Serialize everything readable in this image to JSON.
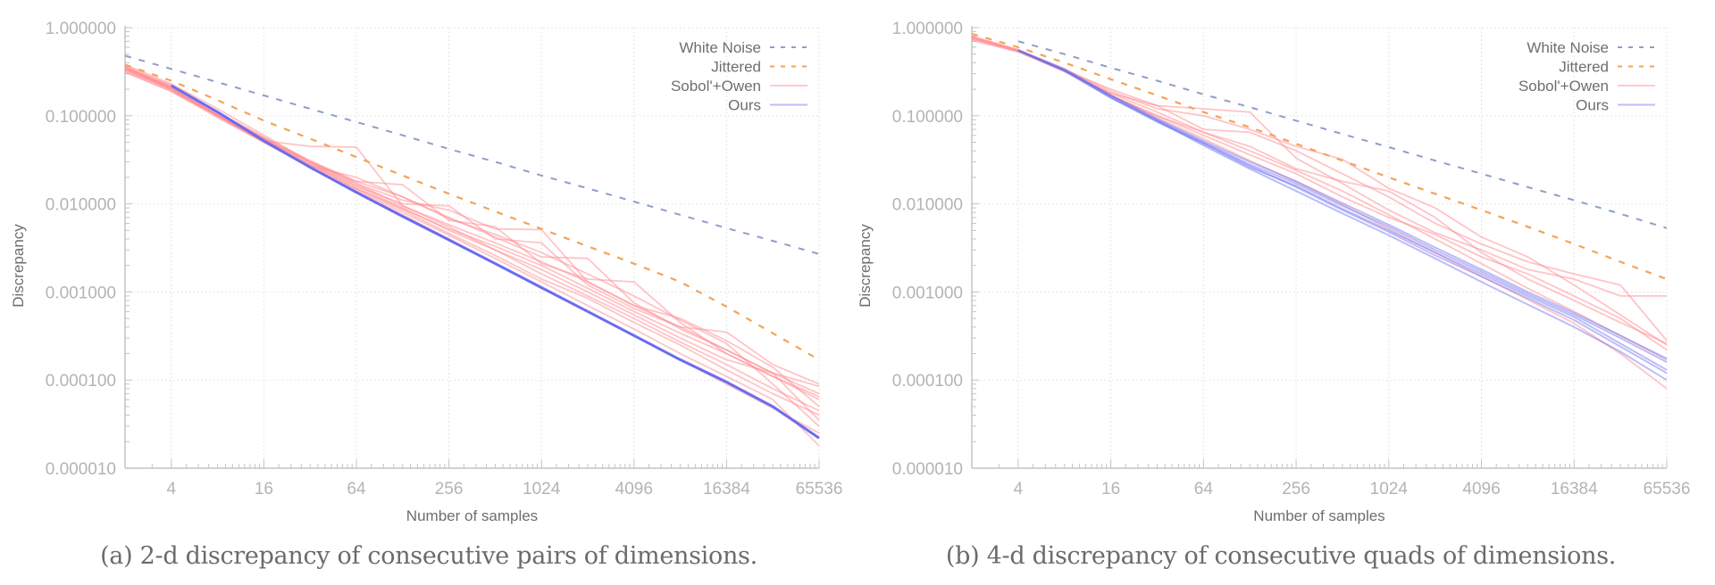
{
  "colors": {
    "white_noise": "#8c9fc8",
    "jittered": "#f3a35a",
    "sobol_owen": "#ff8a8f",
    "ours": "#6b6cf0",
    "axis": "#c4c4c4",
    "grid": "#dddddd"
  },
  "chart_data": [
    {
      "type": "line",
      "id": "a",
      "caption": "(a) 2-d discrepancy of consecutive pairs of dimensions.",
      "xlabel": "Number of samples",
      "ylabel": "Discrepancy",
      "xscale": "log2",
      "yscale": "log10",
      "xlim": [
        2,
        65536
      ],
      "ylim": [
        1e-05,
        1
      ],
      "xticks": [
        "4",
        "16",
        "64",
        "256",
        "1024",
        "4096",
        "16384",
        "65536"
      ],
      "xtick_values": [
        4,
        16,
        64,
        256,
        1024,
        4096,
        16384,
        65536
      ],
      "yticks": [
        "1.000000",
        "0.100000",
        "0.010000",
        "0.001000",
        "0.000100",
        "0.000010"
      ],
      "ytick_values": [
        1,
        0.1,
        0.01,
        0.001,
        0.0001,
        1e-05
      ],
      "grid": true,
      "legend_position": "top-right",
      "legend": [
        "White Noise",
        "Jittered",
        "Sobol'+Owen",
        "Ours"
      ],
      "x": [
        2,
        4,
        8,
        16,
        32,
        64,
        128,
        256,
        512,
        1024,
        2048,
        4096,
        8192,
        16384,
        32768,
        65536
      ],
      "series": [
        {
          "name": "White Noise",
          "style": "dashed",
          "values": [
            0.48,
            0.34,
            0.24,
            0.17,
            0.12,
            0.085,
            0.06,
            0.042,
            0.03,
            0.021,
            0.015,
            0.0106,
            0.0075,
            0.0053,
            0.0038,
            0.0027
          ]
        },
        {
          "name": "Jittered",
          "style": "dashed",
          "values": [
            0.38,
            0.25,
            0.15,
            0.088,
            0.055,
            0.034,
            0.021,
            0.013,
            0.0082,
            0.0052,
            0.0033,
            0.0021,
            0.0013,
            0.00068,
            0.00034,
            0.00017
          ]
        },
        {
          "name": "Ours",
          "style": "solid-thick",
          "values": [
            null,
            0.22,
            0.11,
            0.052,
            0.026,
            0.0135,
            0.0072,
            0.0039,
            0.0021,
            0.00112,
            0.0006,
            0.00032,
            0.00017,
            9.5e-05,
            5e-05,
            2.2e-05
          ]
        }
      ],
      "sobol_owen_runs": [
        [
          0.36,
          0.21,
          0.1,
          0.05,
          0.026,
          0.014,
          0.0075,
          0.004,
          0.0021,
          0.0011,
          0.0006,
          0.00032,
          0.00017,
          9e-05,
          4.8e-05,
          2.5e-05
        ],
        [
          0.33,
          0.2,
          0.1,
          0.052,
          0.045,
          0.044,
          0.0095,
          0.0055,
          0.003,
          0.0016,
          0.0009,
          0.0005,
          0.00027,
          0.00015,
          8e-05,
          4.5e-05
        ],
        [
          0.38,
          0.23,
          0.12,
          0.06,
          0.03,
          0.018,
          0.0165,
          0.0065,
          0.0055,
          0.0021,
          0.0014,
          0.0013,
          0.00045,
          0.0002,
          0.00011,
          6e-05
        ],
        [
          0.34,
          0.2,
          0.1,
          0.055,
          0.028,
          0.016,
          0.01,
          0.0095,
          0.004,
          0.0036,
          0.0012,
          0.00065,
          0.0004,
          0.00035,
          0.00015,
          9e-05
        ],
        [
          0.31,
          0.19,
          0.095,
          0.05,
          0.027,
          0.02,
          0.012,
          0.007,
          0.0042,
          0.0025,
          0.0024,
          0.00075,
          0.00038,
          0.00022,
          0.00012,
          7e-05
        ],
        [
          0.35,
          0.21,
          0.105,
          0.055,
          0.03,
          0.017,
          0.011,
          0.0085,
          0.0052,
          0.0051,
          0.0013,
          0.0007,
          0.0005,
          0.00028,
          0.00014,
          5e-05
        ],
        [
          0.37,
          0.22,
          0.11,
          0.057,
          0.031,
          0.018,
          0.012,
          0.0068,
          0.0045,
          0.0028,
          0.0016,
          0.0009,
          0.00048,
          0.00026,
          9e-05,
          3e-05
        ],
        [
          0.32,
          0.19,
          0.1,
          0.053,
          0.028,
          0.015,
          0.0085,
          0.0046,
          0.0026,
          0.0014,
          0.00085,
          0.00045,
          0.00025,
          0.00013,
          7e-05,
          4e-05
        ],
        [
          0.34,
          0.21,
          0.105,
          0.054,
          0.029,
          0.016,
          0.009,
          0.005,
          0.003,
          0.0018,
          0.001,
          0.00055,
          0.0003,
          0.00017,
          0.00012,
          8.5e-05
        ],
        [
          0.36,
          0.2,
          0.1,
          0.05,
          0.026,
          0.0145,
          0.008,
          0.0044,
          0.0024,
          0.0013,
          0.0007,
          0.00038,
          0.0002,
          0.00011,
          6e-05,
          1.8e-05
        ],
        [
          0.33,
          0.2,
          0.1,
          0.051,
          0.027,
          0.015,
          0.0088,
          0.0052,
          0.0033,
          0.002,
          0.0011,
          0.0006,
          0.00034,
          0.0002,
          0.00011,
          6.5e-05
        ],
        [
          0.35,
          0.22,
          0.11,
          0.056,
          0.03,
          0.017,
          0.0095,
          0.0058,
          0.0036,
          0.0022,
          0.0013,
          0.0007,
          0.0004,
          0.00022,
          0.00012,
          3.5e-05
        ]
      ]
    },
    {
      "type": "line",
      "id": "b",
      "caption": "(b) 4-d discrepancy of consecutive quads of dimensions.",
      "xlabel": "Number of samples",
      "ylabel": "Discrepancy",
      "xscale": "log2",
      "yscale": "log10",
      "xlim": [
        2,
        65536
      ],
      "ylim": [
        1e-05,
        1
      ],
      "xticks": [
        "4",
        "16",
        "64",
        "256",
        "1024",
        "4096",
        "16384",
        "65536"
      ],
      "xtick_values": [
        4,
        16,
        64,
        256,
        1024,
        4096,
        16384,
        65536
      ],
      "yticks": [
        "1.000000",
        "0.100000",
        "0.010000",
        "0.001000",
        "0.000100",
        "0.000010"
      ],
      "ytick_values": [
        1,
        0.1,
        0.01,
        0.001,
        0.0001,
        1e-05
      ],
      "grid": true,
      "legend_position": "top-right",
      "legend": [
        "White Noise",
        "Jittered",
        "Sobol'+Owen",
        "Ours"
      ],
      "x": [
        2,
        4,
        8,
        16,
        32,
        64,
        128,
        256,
        512,
        1024,
        2048,
        4096,
        8192,
        16384,
        32768,
        65536
      ],
      "series": [
        {
          "name": "White Noise",
          "style": "dashed",
          "values": [
            null,
            0.7,
            0.5,
            0.35,
            0.25,
            0.175,
            0.125,
            0.088,
            0.062,
            0.044,
            0.031,
            0.022,
            0.0155,
            0.011,
            0.0077,
            0.0053
          ]
        },
        {
          "name": "Jittered",
          "style": "dashed",
          "values": [
            0.85,
            0.6,
            0.4,
            0.26,
            0.17,
            0.11,
            0.074,
            0.048,
            0.031,
            0.02,
            0.013,
            0.0085,
            0.0055,
            0.0035,
            0.0022,
            0.0014
          ]
        }
      ],
      "ours_runs": [
        [
          null,
          0.55,
          0.33,
          0.16,
          0.085,
          0.048,
          0.026,
          0.016,
          0.0088,
          0.005,
          0.0028,
          0.0016,
          0.0009,
          0.00052,
          0.00026,
          0.00013
        ],
        [
          null,
          0.55,
          0.33,
          0.17,
          0.09,
          0.05,
          0.028,
          0.017,
          0.0095,
          0.0055,
          0.003,
          0.0017,
          0.00095,
          0.00055,
          0.0003,
          0.00016
        ],
        [
          null,
          0.55,
          0.32,
          0.16,
          0.088,
          0.046,
          0.025,
          0.014,
          0.0078,
          0.0044,
          0.0024,
          0.0013,
          0.00072,
          0.0004,
          0.00021,
          0.0001
        ],
        [
          null,
          0.56,
          0.34,
          0.17,
          0.092,
          0.052,
          0.03,
          0.018,
          0.0102,
          0.0058,
          0.0032,
          0.0018,
          0.001,
          0.00058,
          0.00032,
          0.000175
        ],
        [
          null,
          0.55,
          0.33,
          0.165,
          0.087,
          0.049,
          0.027,
          0.0155,
          0.0085,
          0.0048,
          0.0026,
          0.0015,
          0.00085,
          0.00048,
          0.00024,
          0.00012
        ]
      ],
      "sobol_owen_runs": [
        [
          0.78,
          0.55,
          0.33,
          0.17,
          0.1,
          0.065,
          0.04,
          0.024,
          0.014,
          0.0075,
          0.004,
          0.0021,
          0.0011,
          0.0006,
          0.00032,
          0.00017
        ],
        [
          0.72,
          0.53,
          0.32,
          0.18,
          0.13,
          0.12,
          0.11,
          0.033,
          0.017,
          0.0085,
          0.0047,
          0.003,
          0.0018,
          0.0014,
          0.0009,
          0.0009
        ],
        [
          0.8,
          0.56,
          0.34,
          0.19,
          0.12,
          0.1,
          0.07,
          0.045,
          0.032,
          0.015,
          0.009,
          0.0042,
          0.0025,
          0.0012,
          0.00055,
          0.00025
        ],
        [
          0.75,
          0.54,
          0.33,
          0.2,
          0.13,
          0.07,
          0.065,
          0.04,
          0.022,
          0.012,
          0.006,
          0.0035,
          0.0022,
          0.0016,
          0.0012,
          0.00028
        ],
        [
          0.77,
          0.55,
          0.33,
          0.18,
          0.11,
          0.065,
          0.045,
          0.025,
          0.018,
          0.014,
          0.007,
          0.0028,
          0.0014,
          0.0008,
          0.00045,
          0.00026
        ],
        [
          0.74,
          0.54,
          0.32,
          0.17,
          0.1,
          0.06,
          0.036,
          0.022,
          0.012,
          0.007,
          0.0045,
          0.0025,
          0.0016,
          0.0009,
          0.0005,
          0.00022
        ],
        [
          0.79,
          0.56,
          0.33,
          0.17,
          0.095,
          0.055,
          0.031,
          0.018,
          0.0098,
          0.0052,
          0.0028,
          0.0015,
          0.00082,
          0.00044,
          0.0002,
          8e-05
        ]
      ]
    }
  ]
}
